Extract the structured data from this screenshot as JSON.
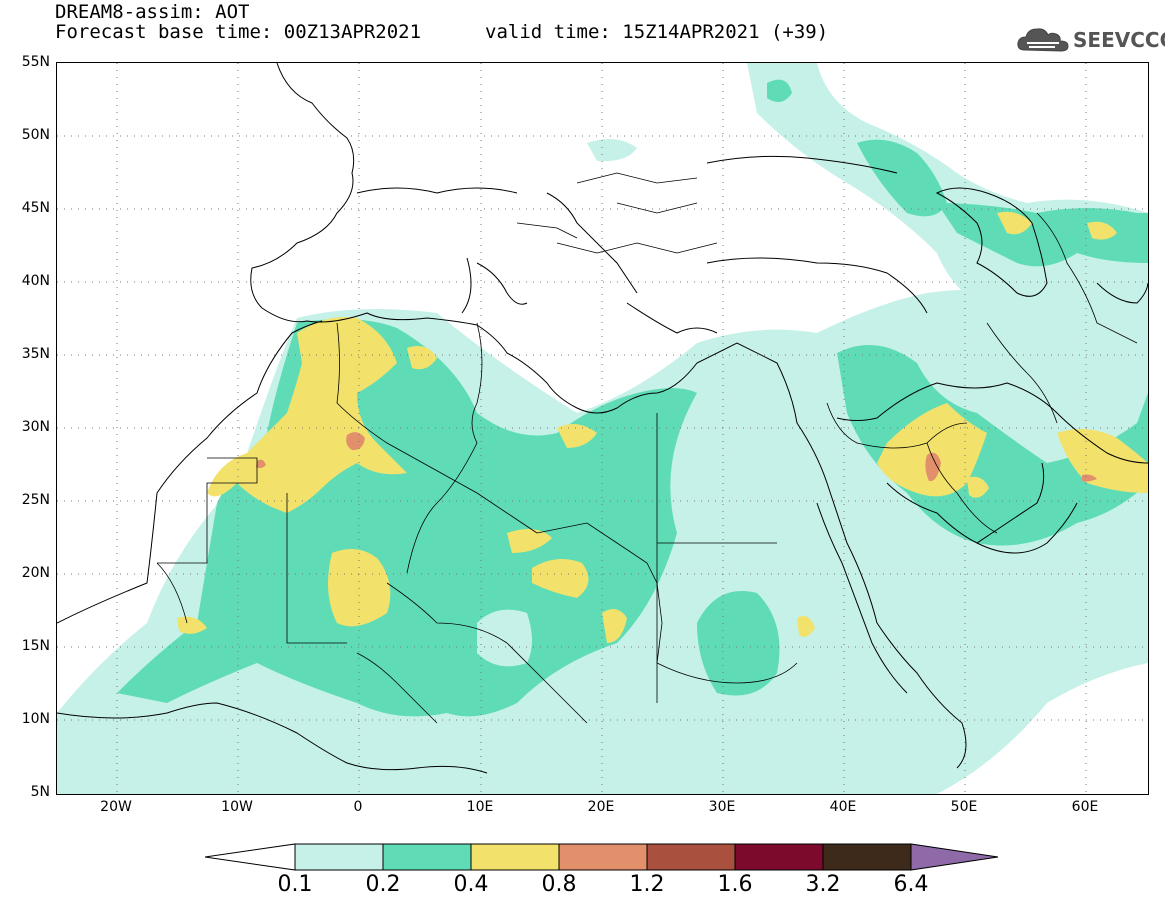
{
  "header": {
    "title": "DREAM8-assim: AOT",
    "base_time": "Forecast base time: 00Z13APR2021",
    "valid_time": "valid time: 15Z14APR2021 (+39)"
  },
  "logo": {
    "text": "SEEVCCC",
    "icon": "cloud-icon"
  },
  "map": {
    "lon_range": [
      -25,
      65
    ],
    "lat_range": [
      5,
      55
    ],
    "lat_ticks": [
      "55N",
      "50N",
      "45N",
      "40N",
      "35N",
      "30N",
      "25N",
      "20N",
      "15N",
      "10N",
      "5N"
    ],
    "lon_ticks": [
      "20W",
      "10W",
      "0",
      "10E",
      "20E",
      "30E",
      "40E",
      "50E",
      "60E"
    ],
    "gridlines": "dotted",
    "field": "aerosol optical thickness"
  },
  "colorbar": {
    "labels": [
      "0.1",
      "0.2",
      "0.4",
      "0.8",
      "1.2",
      "1.6",
      "3.2",
      "6.4"
    ],
    "colors": [
      "#ffffff",
      "#c6f1e8",
      "#5fdcb6",
      "#f2e26c",
      "#e2906b",
      "#a9503f",
      "#7b0a2c",
      "#3e2a1b",
      "#8e6aa9"
    ]
  },
  "colors": {
    "level_0_1": "#c6f1e8",
    "level_0_2": "#5fdcb6",
    "level_0_4": "#f2e26c",
    "level_0_8": "#e2906b"
  }
}
